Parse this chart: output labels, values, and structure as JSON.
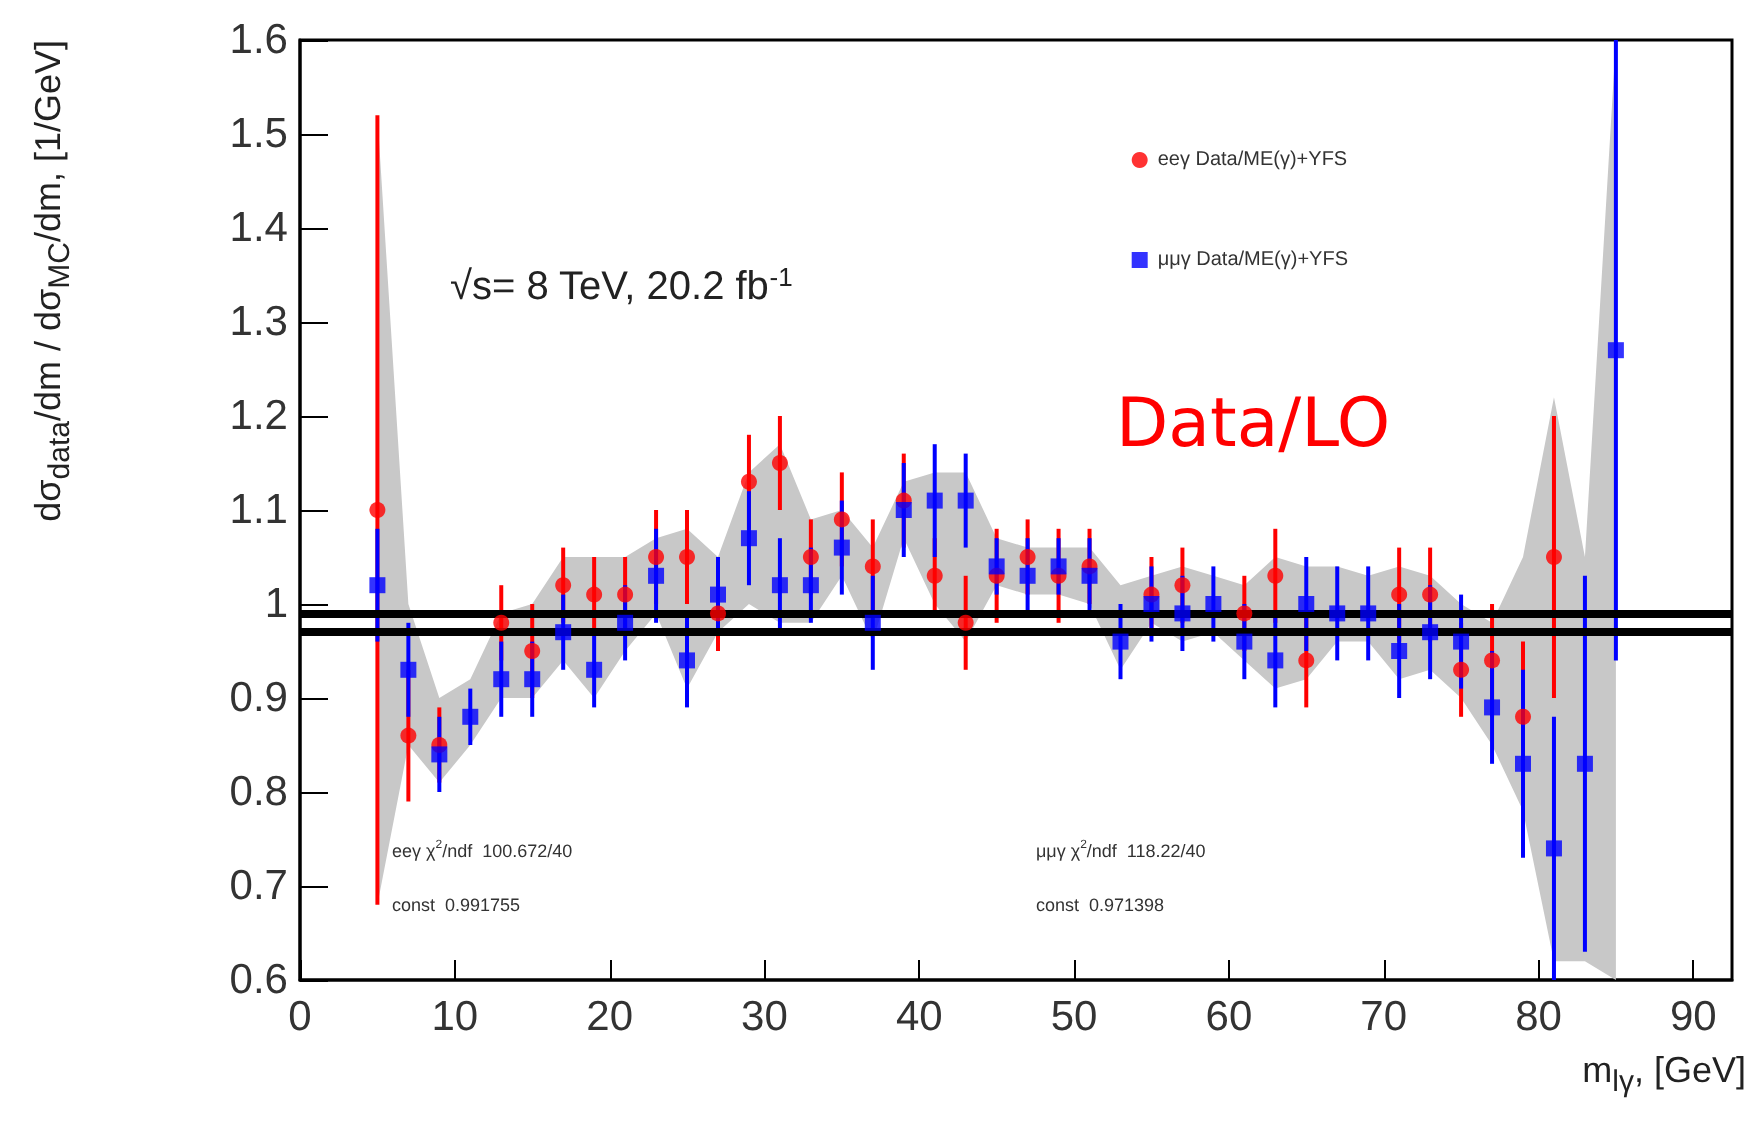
{
  "chart_data": {
    "type": "scatter",
    "xlabel": "m$_{lγ}$, [GeV]",
    "ylabel": "dσ$_{data}$/dm / dσ$_{MC}$/dm, [1/GeV]",
    "x": [
      5,
      7,
      9,
      11,
      13,
      15,
      17,
      19,
      21,
      23,
      25,
      27,
      29,
      31,
      33,
      35,
      37,
      39,
      41,
      43,
      45,
      47,
      49,
      51,
      53,
      55,
      57,
      59,
      61,
      63,
      65,
      67,
      69,
      71,
      73,
      75,
      77,
      79,
      81,
      83,
      85
    ],
    "series": [
      {
        "name": "eeγ Data/ME(γ)+YFS",
        "color": "#ff0000",
        "marker": "circle",
        "values": [
          1.1,
          0.86,
          0.85,
          null,
          0.98,
          0.95,
          1.02,
          1.01,
          1.01,
          1.05,
          1.05,
          0.99,
          1.13,
          1.15,
          1.05,
          1.09,
          1.04,
          1.11,
          1.03,
          0.98,
          1.03,
          1.05,
          1.03,
          1.04,
          null,
          1.01,
          1.02,
          null,
          0.99,
          1.03,
          0.94,
          null,
          null,
          1.01,
          1.01,
          0.93,
          0.94,
          0.88,
          1.05,
          null,
          null
        ],
        "errors": [
          0.42,
          0.07,
          0.04,
          null,
          0.04,
          0.05,
          0.04,
          0.04,
          0.04,
          0.05,
          0.05,
          0.04,
          0.05,
          0.05,
          0.04,
          0.05,
          0.05,
          0.05,
          0.04,
          0.05,
          0.05,
          0.04,
          0.05,
          0.04,
          null,
          0.04,
          0.04,
          null,
          0.04,
          0.05,
          0.05,
          null,
          null,
          0.05,
          0.05,
          0.05,
          0.06,
          0.08,
          0.15,
          null,
          null
        ]
      },
      {
        "name": "μμγ Data/ME(γ)+YFS",
        "color": "#0000ff",
        "marker": "square",
        "values": [
          1.02,
          0.93,
          0.84,
          0.88,
          0.92,
          0.92,
          0.97,
          0.93,
          0.98,
          1.03,
          0.94,
          1.01,
          1.07,
          1.02,
          1.02,
          1.06,
          0.98,
          1.1,
          1.11,
          1.11,
          1.04,
          1.03,
          1.04,
          1.03,
          0.96,
          1.0,
          0.99,
          1.0,
          0.96,
          0.94,
          1.0,
          0.99,
          0.99,
          0.95,
          0.97,
          0.96,
          0.89,
          0.83,
          0.74,
          0.83,
          1.27
        ],
        "errors": [
          0.06,
          0.05,
          0.04,
          0.03,
          0.04,
          0.04,
          0.04,
          0.04,
          0.04,
          0.05,
          0.05,
          0.04,
          0.05,
          0.05,
          0.04,
          0.05,
          0.05,
          0.05,
          0.06,
          0.05,
          0.03,
          0.04,
          0.03,
          0.04,
          0.04,
          0.04,
          0.04,
          0.04,
          0.04,
          0.05,
          0.05,
          0.05,
          0.05,
          0.05,
          0.05,
          0.05,
          0.06,
          0.1,
          0.14,
          0.2,
          0.33
        ],
        "lower": [
          0.68,
          0.85,
          0.81,
          0.85,
          0.9,
          0.9,
          0.94,
          0.9,
          0.95,
          0.99,
          0.91,
          0.97,
          1.0,
          0.98,
          0.98,
          1.03,
          0.96,
          1.07,
          1.0,
          0.96,
          1.02,
          1.01,
          1.01,
          1.0,
          0.93,
          0.98,
          0.96,
          0.97,
          0.94,
          0.91,
          0.92,
          0.96,
          0.96,
          0.92,
          0.93,
          0.9,
          0.85,
          0.78,
          0.62,
          0.62,
          0.6
        ],
        "upper": [
          1.52,
          1.0,
          0.9,
          0.92,
          0.99,
          1.0,
          1.05,
          1.05,
          1.05,
          1.07,
          1.08,
          1.05,
          1.14,
          1.17,
          1.09,
          1.1,
          1.06,
          1.13,
          1.14,
          1.14,
          1.07,
          1.06,
          1.06,
          1.06,
          1.02,
          1.03,
          1.04,
          1.03,
          1.02,
          1.05,
          1.04,
          1.04,
          1.03,
          1.04,
          1.03,
          1.0,
          0.98,
          1.05,
          1.22,
          1.05,
          1.6
        ]
      }
    ],
    "xlim": [
      0,
      92.5
    ],
    "xticks": [
      0,
      10,
      20,
      30,
      40,
      50,
      60,
      70,
      80,
      90
    ],
    "ylim": [
      0.6,
      1.6
    ],
    "yticks": [
      0.6,
      0.7,
      0.8,
      0.9,
      1,
      1.1,
      1.2,
      1.3,
      1.4,
      1.5,
      1.6
    ],
    "ref_lines": [
      {
        "axis": "y",
        "value": 0.991755,
        "color": "#000000"
      },
      {
        "axis": "y",
        "value": 0.971398,
        "color": "#000000"
      }
    ],
    "annotations": [
      "√s= 8 TeV, 20.2 fb$^{-1}$",
      "Data/LO",
      "eeγ χ$^{2}$/ndf  100.672/40",
      "const  0.991755",
      "μμγ χ$^{2}$/ndf  118.22/40",
      "const  0.971398"
    ],
    "grid": false,
    "legend": "top right"
  }
}
